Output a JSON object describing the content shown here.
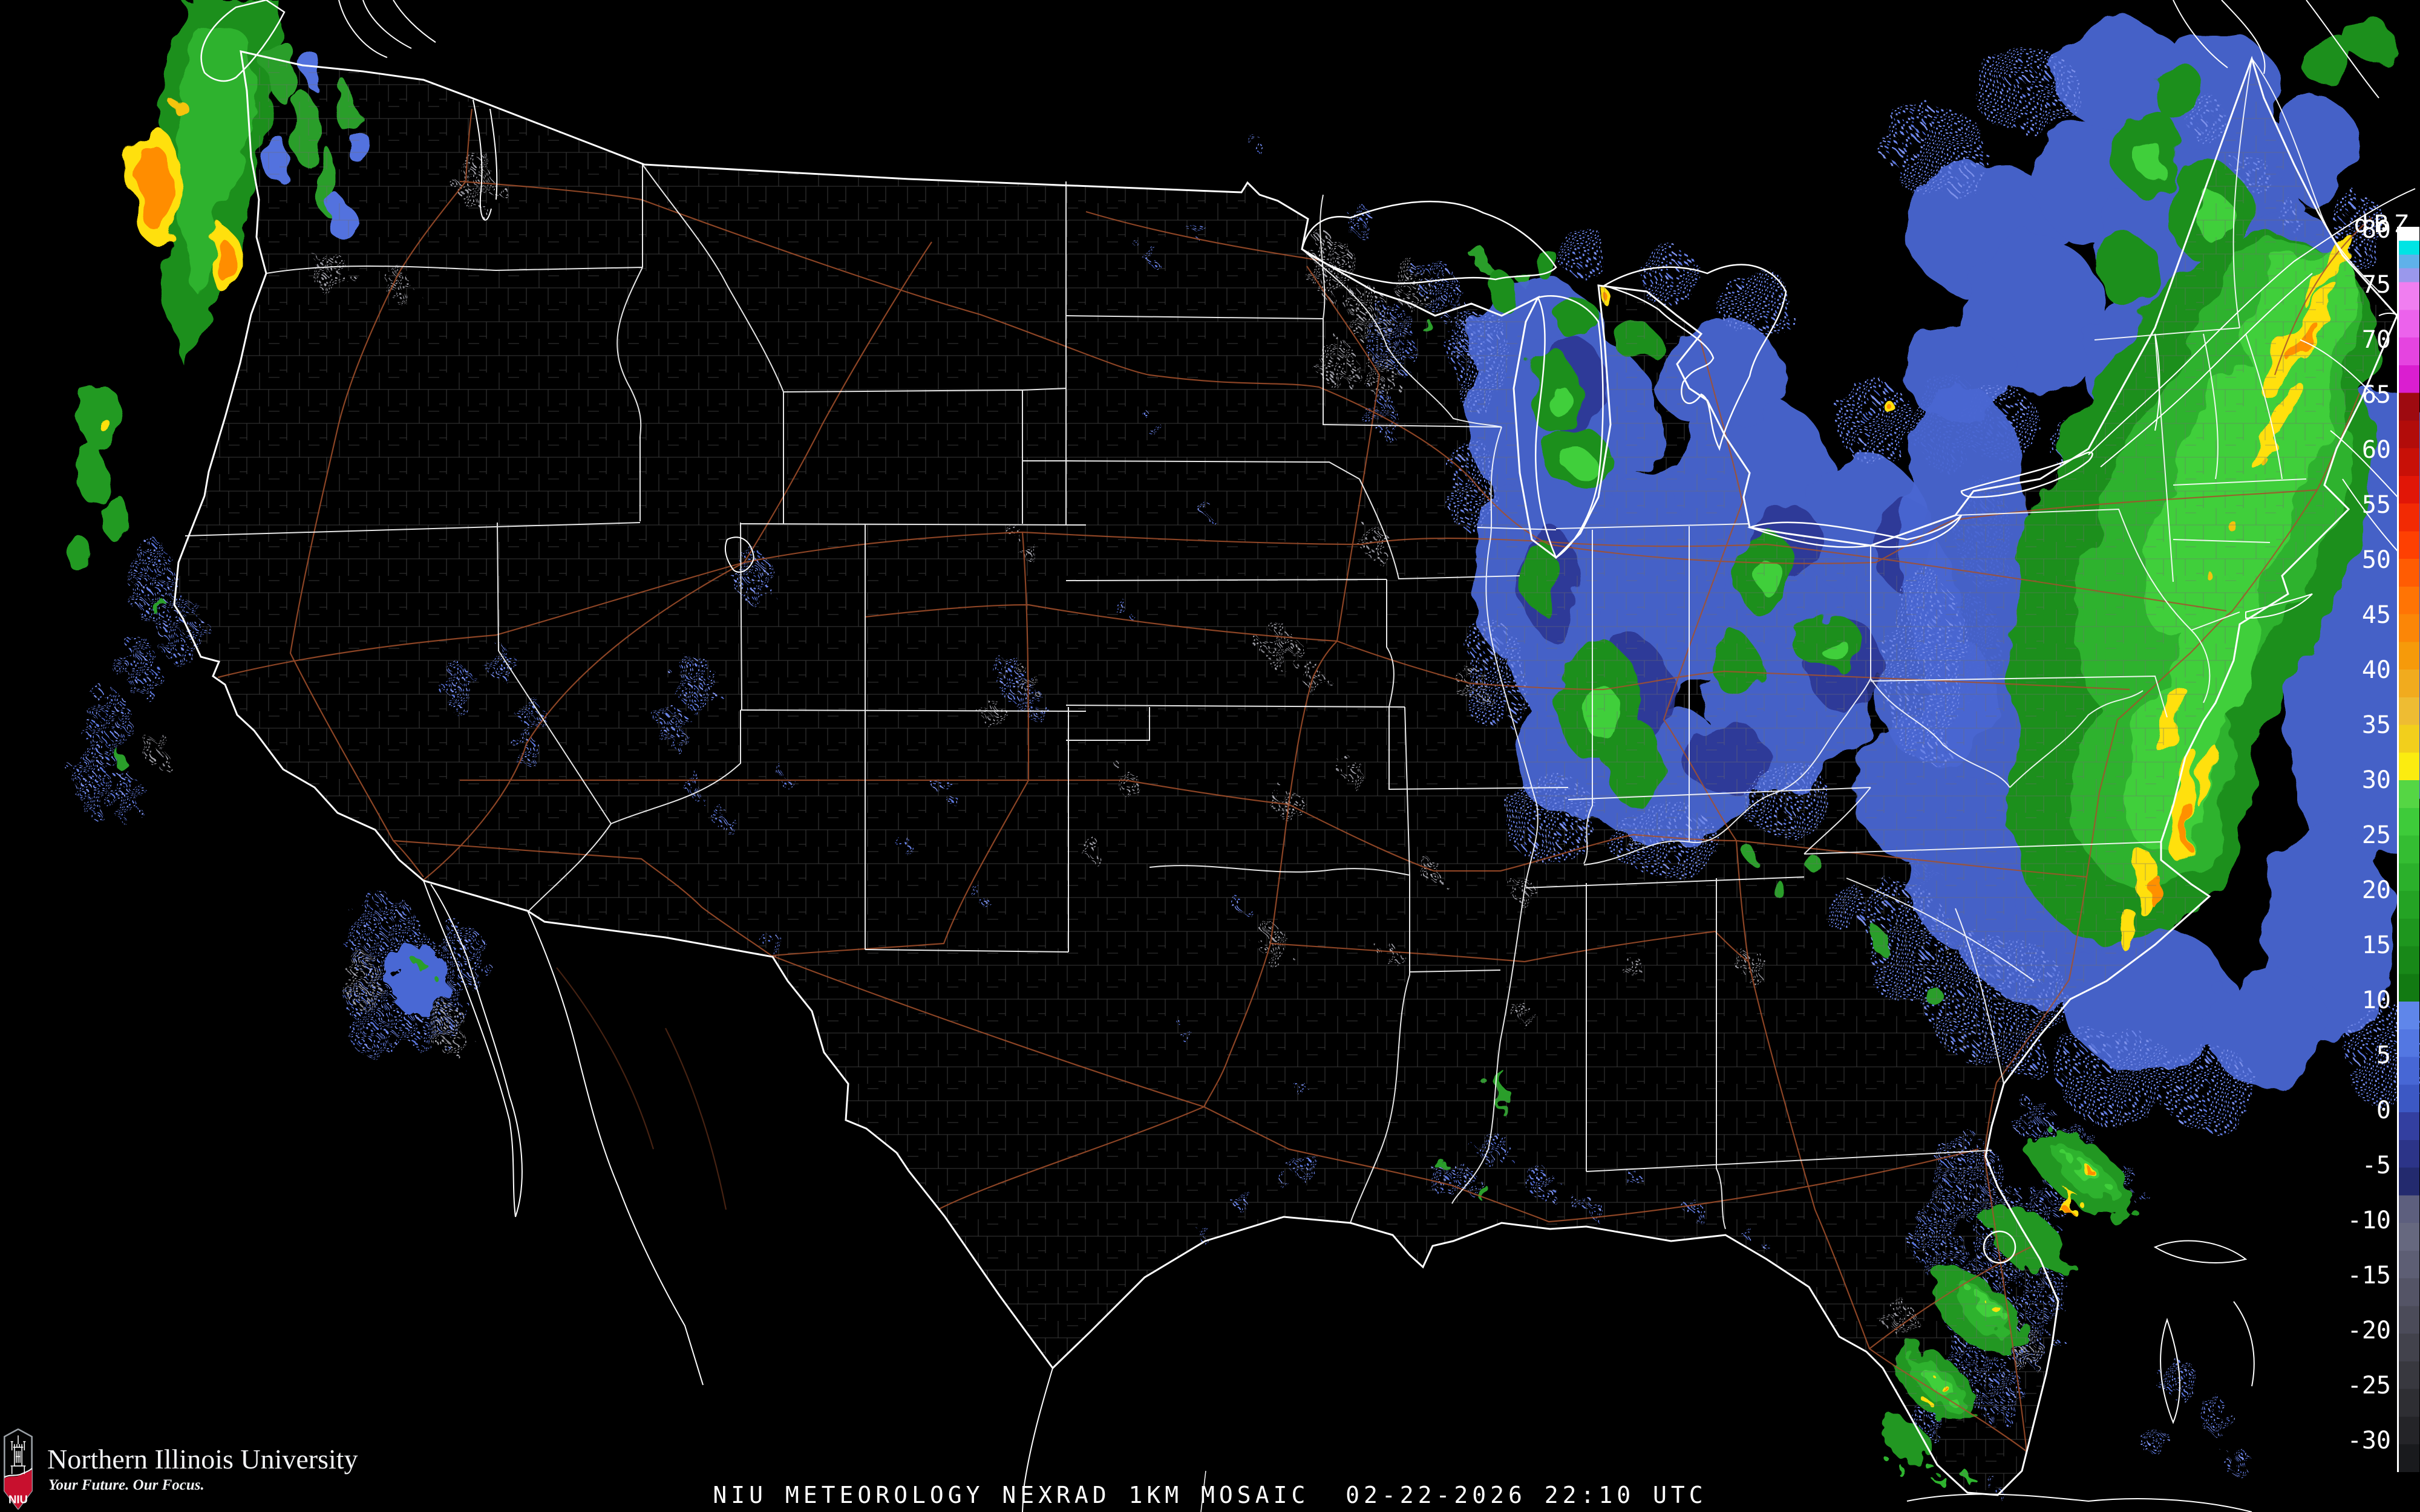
{
  "map": {
    "background": "#000000",
    "state_border_color": "#ffffff",
    "coastline_color": "#ffffff",
    "county_border_color": "#6e6e6e",
    "highway_color": "#a5512c"
  },
  "colorbar": {
    "title": "dBZ",
    "ticks": [
      "80",
      "75",
      "70",
      "65",
      "60",
      "55",
      "50",
      "45",
      "40",
      "35",
      "30",
      "25",
      "20",
      "15",
      "10",
      "5",
      "0",
      "-5",
      "-10",
      "-15",
      "-20",
      "-25",
      "-30"
    ],
    "segments": [
      {
        "c": "#ffffff",
        "s": 1.25
      },
      {
        "c": "#00e4e4",
        "s": 1.25
      },
      {
        "c": "#5fb1ea",
        "s": 1.25
      },
      {
        "c": "#9a98ec",
        "s": 1.25
      },
      {
        "c": "#f07ef0",
        "s": 2.5
      },
      {
        "c": "#ec62ec",
        "s": 2.5
      },
      {
        "c": "#e544e0",
        "s": 2.5
      },
      {
        "c": "#da1ed0",
        "s": 2.5
      },
      {
        "c": "#9e0a10",
        "s": 2.5
      },
      {
        "c": "#b20c0a",
        "s": 2.5
      },
      {
        "c": "#c81007",
        "s": 2.5
      },
      {
        "c": "#e11607",
        "s": 2.5
      },
      {
        "c": "#f22a04",
        "s": 2.5
      },
      {
        "c": "#fe4002",
        "s": 2.5
      },
      {
        "c": "#ff5c03",
        "s": 2.5
      },
      {
        "c": "#ff7405",
        "s": 2.5
      },
      {
        "c": "#fb8607",
        "s": 2.5
      },
      {
        "c": "#f69a0a",
        "s": 2.5
      },
      {
        "c": "#f1ab1e",
        "s": 2.5
      },
      {
        "c": "#eebc33",
        "s": 2.5
      },
      {
        "c": "#f2cf1c",
        "s": 2.5
      },
      {
        "c": "#fbec10",
        "s": 2.5
      },
      {
        "c": "#55d644",
        "s": 2.5
      },
      {
        "c": "#3ecb3a",
        "s": 2.5
      },
      {
        "c": "#34bd32",
        "s": 2.5
      },
      {
        "c": "#2bb02b",
        "s": 2.5
      },
      {
        "c": "#24a324",
        "s": 2.5
      },
      {
        "c": "#1e961e",
        "s": 2.5
      },
      {
        "c": "#188818",
        "s": 2.5
      },
      {
        "c": "#127a12",
        "s": 2.5
      },
      {
        "c": "#5f86ea",
        "s": 2.5
      },
      {
        "c": "#5377e2",
        "s": 2.5
      },
      {
        "c": "#4767d5",
        "s": 2.5
      },
      {
        "c": "#3c58c4",
        "s": 2.5
      },
      {
        "c": "#333fa0",
        "s": 2.5
      },
      {
        "c": "#2c3488",
        "s": 2.5
      },
      {
        "c": "#232a6e",
        "s": 2.5
      },
      {
        "c": "#5d5f7e",
        "s": 2.5
      },
      {
        "c": "#66687f",
        "s": 2.5
      },
      {
        "c": "#5d5e74",
        "s": 2.5
      },
      {
        "c": "#545466",
        "s": 2.5
      },
      {
        "c": "#4b4b59",
        "s": 2.5
      },
      {
        "c": "#42424c",
        "s": 2.5
      },
      {
        "c": "#38383f",
        "s": 2.5
      },
      {
        "c": "#2e2e33",
        "s": 2.5
      },
      {
        "c": "#242428",
        "s": 2.5
      },
      {
        "c": "#191a1d",
        "s": 2.5
      }
    ]
  },
  "caption": {
    "text": "NIU METEOROLOGY NEXRAD 1KM MOSAIC  02-22-2026 22:10 UTC"
  },
  "branding": {
    "shield_label": "NIU",
    "shield_red": "#c8102e",
    "institution": "Northern Illinois University",
    "tagline": "Your Future. Our Focus."
  }
}
